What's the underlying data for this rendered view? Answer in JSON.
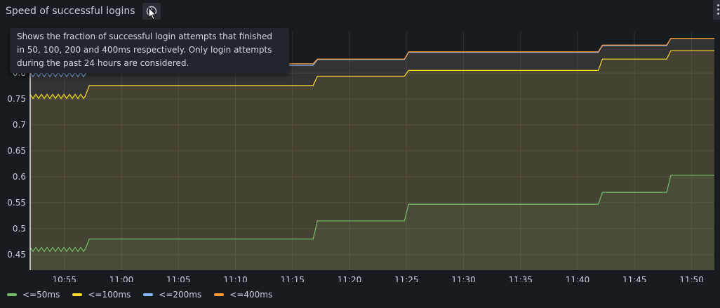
{
  "panel": {
    "title": "Speed of successful logins",
    "info_icon": "info-circle-icon",
    "tooltip": "Shows the fraction of successful login attempts that finished in 50, 100, 200 and 400ms respectively. Only login attempts during the past 24 hours are considered."
  },
  "chart_data": {
    "type": "area",
    "x_ticks": [
      "10:55",
      "11:00",
      "11:05",
      "11:10",
      "11:15",
      "11:20",
      "11:25",
      "11:30",
      "11:35",
      "11:40",
      "11:45",
      "11:50"
    ],
    "y_ticks": [
      "0.45",
      "0.5",
      "0.55",
      "0.6",
      "0.65",
      "0.7",
      "0.75",
      "0.8"
    ],
    "ylim": [
      0.42,
      0.88
    ],
    "x": [
      "10:52",
      "10:57",
      "11:17",
      "11:25",
      "11:42",
      "11:48",
      "11:52"
    ],
    "series": [
      {
        "name": "<=50ms",
        "color": "#73bf69",
        "values": [
          0.46,
          0.48,
          0.515,
          0.547,
          0.57,
          0.603,
          0.603
        ]
      },
      {
        "name": "<=100ms",
        "color": "#fade2a",
        "values": [
          0.755,
          0.776,
          0.794,
          0.805,
          0.827,
          0.843,
          0.843
        ]
      },
      {
        "name": "<=200ms",
        "color": "#8ab8ff",
        "values": [
          0.797,
          0.815,
          0.826,
          0.84,
          0.853,
          0.867,
          0.867
        ]
      },
      {
        "name": "<=400ms",
        "color": "#ff9830",
        "values": [
          0.805,
          0.818,
          0.827,
          0.841,
          0.854,
          0.867,
          0.867
        ]
      }
    ],
    "legend_position": "bottom-left",
    "grid": true
  }
}
